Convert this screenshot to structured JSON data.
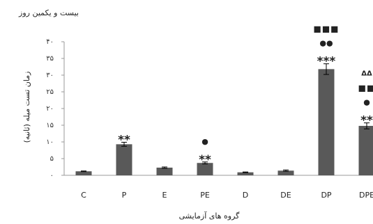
{
  "chart_data": {
    "type": "bar",
    "title": "بیست و یکمین روز",
    "xlabel": "گروه های آزمایشی",
    "ylabel": "زمان تست میله (ثانیه)",
    "ylim": [
      0,
      40
    ],
    "y_ticks": [
      {
        "value": 0,
        "label": "۰"
      },
      {
        "value": 5,
        "label": "۵"
      },
      {
        "value": 10,
        "label": "۱۰"
      },
      {
        "value": 15,
        "label": "۱۵"
      },
      {
        "value": 20,
        "label": "۲۰"
      },
      {
        "value": 25,
        "label": "۲۵"
      },
      {
        "value": 30,
        "label": "۳۰"
      },
      {
        "value": 35,
        "label": "۳۵"
      },
      {
        "value": 40,
        "label": "۴۰"
      }
    ],
    "categories": [
      "C",
      "P",
      "E",
      "PE",
      "D",
      "DE",
      "DP",
      "DPE"
    ],
    "values": [
      1.2,
      9.3,
      2.3,
      3.7,
      0.9,
      1.4,
      31.8,
      14.8
    ],
    "errors": [
      0.1,
      0.6,
      0.2,
      0.3,
      0.1,
      0.2,
      1.6,
      0.9
    ],
    "annotations": [
      [],
      [
        "**"
      ],
      [],
      [
        "●",
        "**"
      ],
      [],
      [],
      [
        "■■■",
        "●●",
        "***"
      ],
      [
        "ΔΔ",
        "■■",
        "●",
        "**"
      ]
    ],
    "bar_color": "#595959",
    "grid": false,
    "legend": "none"
  }
}
